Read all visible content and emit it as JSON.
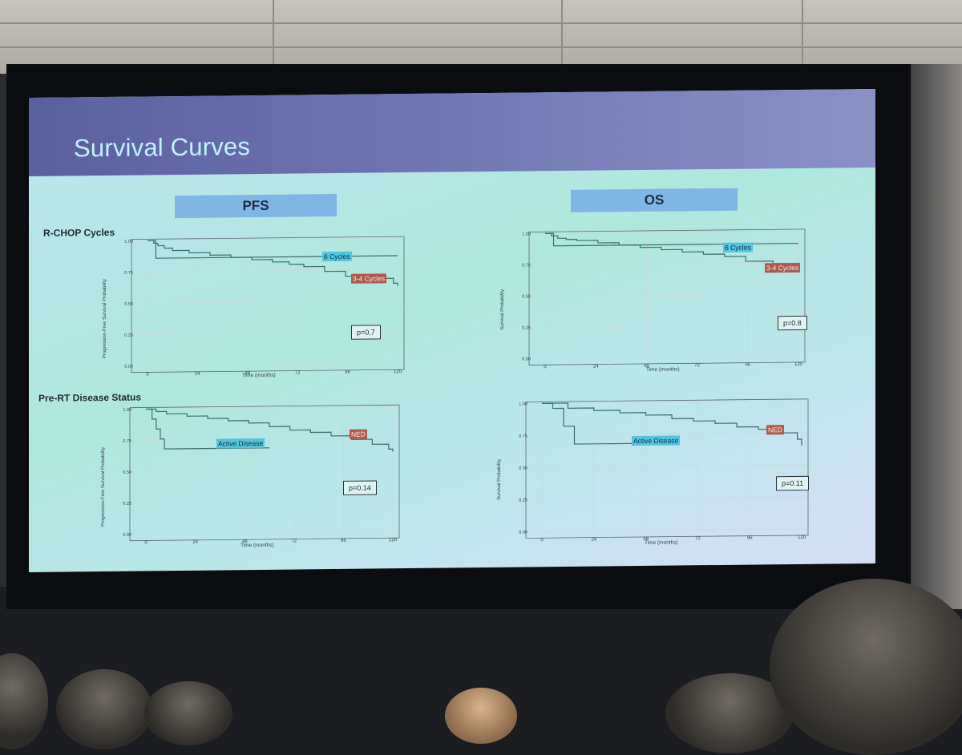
{
  "slide": {
    "title": "Survival Curves",
    "col_headers": [
      "PFS",
      "OS"
    ],
    "row_labels": [
      "R-CHOP Cycles",
      "Pre-RT Disease Status"
    ]
  },
  "colors": {
    "blue_label": "#53c3df",
    "red_label": "#b05a4d",
    "curve": "#3e6f6a"
  },
  "chart_data": [
    {
      "type": "line",
      "ylabel": "Progression-Free Survival Probability",
      "xlabel": "Time (months)",
      "xticks": [
        0,
        24,
        48,
        72,
        96,
        120
      ],
      "yticks": [
        "0.00",
        "0.25",
        "0.50",
        "0.75",
        "1.00"
      ],
      "xlim": [
        0,
        120
      ],
      "ylim": [
        0,
        1
      ],
      "series": [
        {
          "name": "6 Cycles",
          "x": [
            0,
            4,
            4,
            120
          ],
          "y": [
            1.0,
            1.0,
            0.86,
            0.86
          ]
        },
        {
          "name": "3-4 Cycles",
          "x": [
            0,
            3,
            5,
            8,
            12,
            20,
            30,
            40,
            50,
            60,
            68,
            75,
            85,
            95,
            110,
            112,
            118,
            120
          ],
          "y": [
            1.0,
            0.98,
            0.96,
            0.94,
            0.92,
            0.9,
            0.88,
            0.86,
            0.84,
            0.82,
            0.8,
            0.78,
            0.74,
            0.7,
            0.7,
            0.68,
            0.64,
            0.62
          ]
        }
      ],
      "annotation": "p=0.7"
    },
    {
      "type": "line",
      "ylabel": "Survival Probability",
      "xlabel": "Time (months)",
      "xticks": [
        0,
        24,
        48,
        72,
        96,
        120
      ],
      "yticks": [
        "0.00",
        "0.25",
        "0.50",
        "0.75",
        "1.00"
      ],
      "xlim": [
        0,
        120
      ],
      "ylim": [
        0,
        1
      ],
      "series": [
        {
          "name": "6 Cycles",
          "x": [
            0,
            4,
            4,
            120
          ],
          "y": [
            1.0,
            1.0,
            0.9,
            0.9
          ]
        },
        {
          "name": "3-4 Cycles",
          "x": [
            0,
            3,
            6,
            10,
            15,
            25,
            35,
            45,
            55,
            65,
            75,
            85,
            95,
            108,
            115,
            120
          ],
          "y": [
            1.0,
            0.98,
            0.96,
            0.95,
            0.94,
            0.92,
            0.9,
            0.88,
            0.86,
            0.84,
            0.82,
            0.8,
            0.76,
            0.74,
            0.72,
            0.68
          ]
        }
      ],
      "annotation": "p=0.8"
    },
    {
      "type": "line",
      "ylabel": "Progression-Free Survival Probability",
      "xlabel": "Time (months)",
      "xticks": [
        0,
        24,
        48,
        72,
        96,
        120
      ],
      "yticks": [
        "0.00",
        "0.25",
        "0.50",
        "0.75",
        "1.00"
      ],
      "xlim": [
        0,
        120
      ],
      "ylim": [
        0,
        1
      ],
      "series": [
        {
          "name": "Active Disease",
          "x": [
            0,
            3,
            5,
            7,
            9,
            60
          ],
          "y": [
            1.0,
            0.92,
            0.84,
            0.76,
            0.68,
            0.68
          ]
        },
        {
          "name": "NED",
          "x": [
            0,
            5,
            10,
            20,
            30,
            40,
            50,
            60,
            70,
            80,
            90,
            100,
            110,
            118,
            120
          ],
          "y": [
            1.0,
            0.98,
            0.96,
            0.94,
            0.92,
            0.9,
            0.88,
            0.85,
            0.82,
            0.8,
            0.77,
            0.74,
            0.7,
            0.66,
            0.64
          ]
        }
      ],
      "annotation": "p=0.14"
    },
    {
      "type": "line",
      "ylabel": "Survival Probability",
      "xlabel": "Time (months)",
      "xticks": [
        0,
        24,
        48,
        72,
        96,
        120
      ],
      "yticks": [
        "0.00",
        "0.25",
        "0.50",
        "0.75",
        "1.00"
      ],
      "xlim": [
        0,
        120
      ],
      "ylim": [
        0,
        1
      ],
      "series": [
        {
          "name": "Active Disease",
          "x": [
            0,
            5,
            10,
            15,
            60
          ],
          "y": [
            1.0,
            0.96,
            0.82,
            0.68,
            0.68
          ]
        },
        {
          "name": "NED",
          "x": [
            0,
            12,
            24,
            36,
            48,
            60,
            70,
            80,
            90,
            100,
            110,
            118,
            120
          ],
          "y": [
            1.0,
            0.96,
            0.94,
            0.92,
            0.9,
            0.87,
            0.85,
            0.83,
            0.8,
            0.78,
            0.75,
            0.7,
            0.65
          ]
        }
      ],
      "annotation": "p=0.11"
    }
  ]
}
